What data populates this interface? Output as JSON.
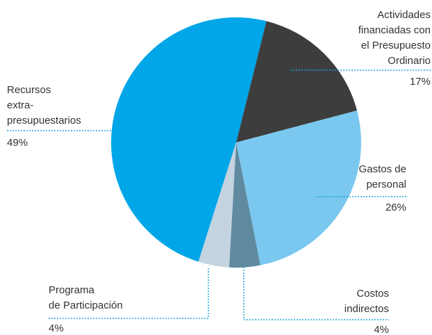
{
  "chart_data": {
    "type": "pie",
    "categories": [
      "Actividades\nfinanciadas con\nel Presupuesto\nOrdinario",
      "Gastos de\npersonal",
      "Costos\nindirectos",
      "Programa\nde Participación",
      "Recursos\nextra-\npresupuestarios"
    ],
    "values": [
      17,
      26,
      4,
      4,
      49
    ],
    "value_labels": [
      "17%",
      "26%",
      "4%",
      "4%",
      "49%"
    ],
    "colors": [
      "#3d3d3d",
      "#7ac8f0",
      "#5f8aa0",
      "#c4d3e0",
      "#00a6e8"
    ]
  }
}
